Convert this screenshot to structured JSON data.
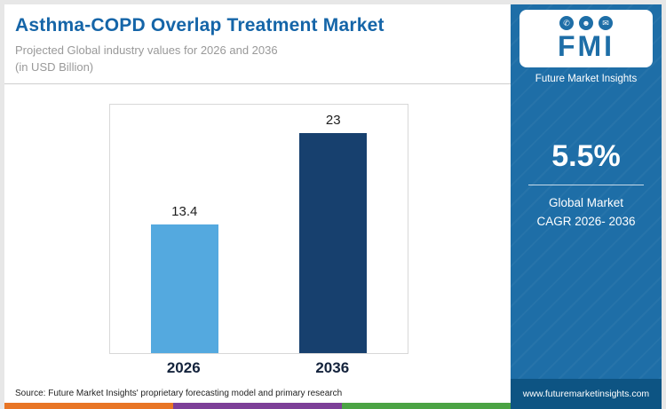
{
  "header": {
    "title": "Asthma-COPD Overlap Treatment Market",
    "subtitle_line1": "Projected Global industry values for 2026 and 2036",
    "subtitle_line2": "(in USD Billion)"
  },
  "chart_data": {
    "type": "bar",
    "categories": [
      "2026",
      "2036"
    ],
    "values": [
      13.4,
      23
    ],
    "title": "Asthma-COPD Overlap Treatment Market",
    "xlabel": "",
    "ylabel": "",
    "unit": "USD Billion",
    "ylim": [
      0,
      26
    ],
    "grid": false,
    "legend": "none",
    "bar_colors": [
      "#54A9DF",
      "#17406E"
    ]
  },
  "source": "Source: Future Market Insights' proprietary forecasting model and primary research",
  "sidebar": {
    "logo_text": "FMI",
    "logo_caption": "Future Market Insights",
    "cagr_value": "5.5%",
    "cagr_label_line1": "Global Market",
    "cagr_label_line2": "CAGR 2026- 2036",
    "website": "www.futuremarketinsights.com",
    "colors": {
      "panel": "#1E6EA7",
      "footer": "#0D5483"
    }
  },
  "footer_strip": {
    "colors": [
      "#E87525",
      "#7D3F98",
      "#4BA344"
    ]
  },
  "icons": {
    "megaphone": "✆",
    "person": "☻",
    "chat": "✉"
  }
}
